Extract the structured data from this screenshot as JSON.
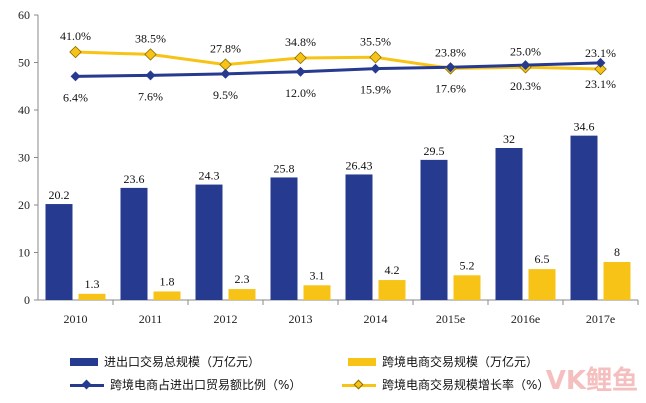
{
  "chart_data": {
    "type": "bar",
    "categories": [
      "2010",
      "2011",
      "2012",
      "2013",
      "2014",
      "2015e",
      "2016e",
      "2017e"
    ],
    "ylim": [
      0,
      60
    ],
    "yticks": [
      0,
      10,
      20,
      30,
      40,
      50,
      60
    ],
    "series": [
      {
        "name": "进出口交易总规模（万亿元）",
        "kind": "bar",
        "color": "#263a8f",
        "values": [
          20.2,
          23.6,
          24.3,
          25.8,
          26.43,
          29.5,
          32,
          34.6
        ],
        "labels": [
          "20.2",
          "23.6",
          "24.3",
          "25.8",
          "26.43",
          "29.5",
          "32",
          "34.6"
        ]
      },
      {
        "name": "跨境电商交易规模（万亿元）",
        "kind": "bar",
        "color": "#f7c316",
        "values": [
          1.3,
          1.8,
          2.3,
          3.1,
          4.2,
          5.2,
          6.5,
          8
        ],
        "labels": [
          "1.3",
          "1.8",
          "2.3",
          "3.1",
          "4.2",
          "5.2",
          "6.5",
          "8"
        ]
      },
      {
        "name": "跨境电商占进出口贸易额比例（%）",
        "kind": "line",
        "color": "#263a8f",
        "percent": [
          6.4,
          7.6,
          9.5,
          12.0,
          15.9,
          17.6,
          20.3,
          23.1
        ],
        "labels": [
          "6.4%",
          "7.6%",
          "9.5%",
          "12.0%",
          "15.9%",
          "17.6%",
          "20.3%",
          "23.1%"
        ]
      },
      {
        "name": "跨境电商交易规模增长率（%）",
        "kind": "line",
        "color": "#f7c316",
        "percent": [
          41.0,
          38.5,
          27.8,
          34.8,
          35.5,
          23.8,
          25.0,
          23.1
        ],
        "labels": [
          "41.0%",
          "38.5%",
          "27.8%",
          "34.8%",
          "35.5%",
          "23.8%",
          "25.0%",
          "23.1%"
        ]
      }
    ],
    "legend": "bottom",
    "grid": false
  },
  "watermark": "VK鲤鱼"
}
